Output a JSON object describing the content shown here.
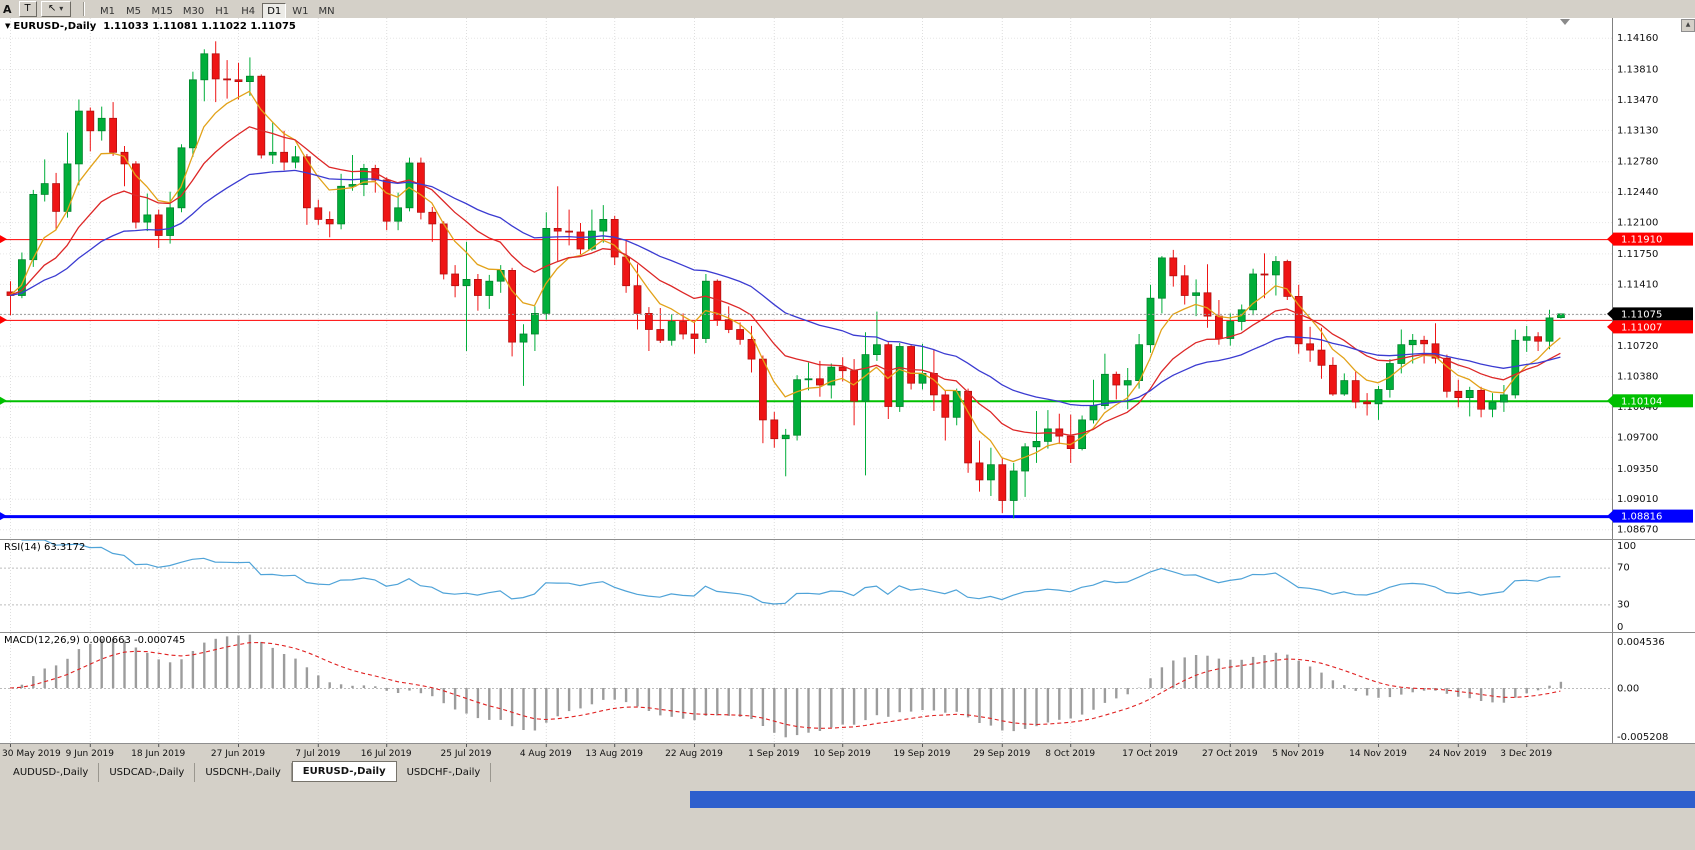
{
  "icons": {
    "collapse": "▼",
    "cursor": "↖",
    "dropdown": "▾",
    "scroll_up": "▲"
  },
  "toolbar": {
    "left_label": "A",
    "t_button_label": "T",
    "timeframes": {
      "items": [
        "M1",
        "M5",
        "M15",
        "M30",
        "H1",
        "H4",
        "D1",
        "W1",
        "MN"
      ],
      "active": "D1"
    }
  },
  "chart_header": {
    "symbol": "EURUSD-,Daily",
    "ohlc": "1.11033 1.11081 1.11022 1.11075"
  },
  "tabs": {
    "items": [
      "AUDUSD-,Daily",
      "USDCAD-,Daily",
      "USDCNH-,Daily",
      "EURUSD-,Daily",
      "USDCHF-,Daily"
    ],
    "active_index": 3
  },
  "chart_data": {
    "type": "candlestick",
    "symbol": "EURUSD",
    "timeframe": "Daily",
    "colors": {
      "bull": "#00ae3a",
      "bull_border": "#00832b",
      "bear": "#ee1515",
      "bear_border": "#b30f0f"
    },
    "price_axis": {
      "ticks": [
        "1.14160",
        "1.13810",
        "1.13470",
        "1.13130",
        "1.12780",
        "1.12440",
        "1.12100",
        "1.11750",
        "1.11410",
        "1.10720",
        "1.10380",
        "1.10040",
        "1.09700",
        "1.09350",
        "1.09010",
        "1.08670"
      ],
      "hidden_gridlines": [
        1.1107
      ],
      "current_price": 1.11075,
      "current_label": "1.11075",
      "current_box_color": "#000000"
    },
    "hlines": [
      {
        "price": 1.1191,
        "label": "1.11910",
        "color": "#ff0000",
        "width": 1
      },
      {
        "price": 1.11007,
        "label": "1.11007",
        "color": "#ff0000",
        "width": 1,
        "box_below_current": true
      },
      {
        "price": 1.10104,
        "label": "1.10104",
        "color": "#00c000",
        "width": 2
      },
      {
        "price": 1.08816,
        "label": "1.08816",
        "color": "#0000ff",
        "width": 3
      }
    ],
    "moving_averages": [
      {
        "name": "ma-fast-line",
        "period": 6,
        "color": "#e2a219"
      },
      {
        "name": "ma-mid-line",
        "period": 14,
        "color": "#dd2727"
      },
      {
        "name": "ma-slow-line",
        "period": 30,
        "color": "#3b3bd1"
      }
    ],
    "rsi": {
      "title": "RSI(14) 63.3172",
      "period": 14,
      "color": "#4fa3d8",
      "scale_labels": [
        "100",
        "70",
        "30",
        "0"
      ],
      "level_lines": [
        70,
        30
      ]
    },
    "macd": {
      "title": "MACD(12,26,9) 0.000663 -0.000745",
      "fast": 12,
      "slow": 26,
      "signal_period": 9,
      "scale_labels": [
        "0.004536",
        "0.00",
        "-0.005208"
      ],
      "hist_color": "#9c9c9c",
      "signal_color": "#e02222"
    },
    "x_labels": [
      {
        "index": 0,
        "label": "30 May 2019"
      },
      {
        "index": 7,
        "label": "9 Jun 2019"
      },
      {
        "index": 13,
        "label": "18 Jun 2019"
      },
      {
        "index": 20,
        "label": "27 Jun 2019"
      },
      {
        "index": 27,
        "label": "7 Jul 2019"
      },
      {
        "index": 33,
        "label": "16 Jul 2019"
      },
      {
        "index": 40,
        "label": "25 Jul 2019"
      },
      {
        "index": 47,
        "label": "4 Aug 2019"
      },
      {
        "index": 53,
        "label": "13 Aug 2019"
      },
      {
        "index": 60,
        "label": "22 Aug 2019"
      },
      {
        "index": 67,
        "label": "1 Sep 2019"
      },
      {
        "index": 73,
        "label": "10 Sep 2019"
      },
      {
        "index": 80,
        "label": "19 Sep 2019"
      },
      {
        "index": 87,
        "label": "29 Sep 2019"
      },
      {
        "index": 93,
        "label": "8 Oct 2019"
      },
      {
        "index": 100,
        "label": "17 Oct 2019"
      },
      {
        "index": 107,
        "label": "27 Oct 2019"
      },
      {
        "index": 113,
        "label": "5 Nov 2019"
      },
      {
        "index": 120,
        "label": "14 Nov 2019"
      },
      {
        "index": 127,
        "label": "24 Nov 2019"
      },
      {
        "index": 133,
        "label": "3 Dec 2019"
      }
    ],
    "candles": [
      [
        1.1132,
        1.1144,
        1.1106,
        1.1128
      ],
      [
        1.1128,
        1.1176,
        1.1125,
        1.1168
      ],
      [
        1.1168,
        1.1246,
        1.116,
        1.1241
      ],
      [
        1.1241,
        1.128,
        1.1233,
        1.1253
      ],
      [
        1.1253,
        1.1265,
        1.1201,
        1.1222
      ],
      [
        1.1222,
        1.131,
        1.1215,
        1.1275
      ],
      [
        1.1275,
        1.1347,
        1.1251,
        1.1334
      ],
      [
        1.1334,
        1.1338,
        1.1289,
        1.1312
      ],
      [
        1.1312,
        1.1339,
        1.1301,
        1.1326
      ],
      [
        1.1326,
        1.1344,
        1.1284,
        1.1288
      ],
      [
        1.1288,
        1.1295,
        1.125,
        1.1275
      ],
      [
        1.1275,
        1.1278,
        1.1203,
        1.121
      ],
      [
        1.121,
        1.1242,
        1.12,
        1.1218
      ],
      [
        1.1218,
        1.1224,
        1.1181,
        1.1195
      ],
      [
        1.1195,
        1.1244,
        1.1186,
        1.1226
      ],
      [
        1.1226,
        1.1297,
        1.1221,
        1.1293
      ],
      [
        1.1293,
        1.1378,
        1.1283,
        1.1369
      ],
      [
        1.1369,
        1.1403,
        1.1345,
        1.1398
      ],
      [
        1.1398,
        1.1412,
        1.1344,
        1.137
      ],
      [
        1.137,
        1.1391,
        1.1348,
        1.1369
      ],
      [
        1.1369,
        1.1388,
        1.1347,
        1.1367
      ],
      [
        1.1367,
        1.1394,
        1.1351,
        1.1373
      ],
      [
        1.1373,
        1.1375,
        1.1281,
        1.1285
      ],
      [
        1.1285,
        1.1322,
        1.1275,
        1.1288
      ],
      [
        1.1288,
        1.1312,
        1.1268,
        1.1277
      ],
      [
        1.1277,
        1.1295,
        1.127,
        1.1283
      ],
      [
        1.1283,
        1.1286,
        1.1207,
        1.1226
      ],
      [
        1.1226,
        1.1235,
        1.1207,
        1.1213
      ],
      [
        1.1213,
        1.1222,
        1.1193,
        1.1208
      ],
      [
        1.1208,
        1.1264,
        1.1202,
        1.125
      ],
      [
        1.125,
        1.1285,
        1.1245,
        1.1252
      ],
      [
        1.1252,
        1.1275,
        1.1239,
        1.127
      ],
      [
        1.127,
        1.1274,
        1.1243,
        1.1257
      ],
      [
        1.1257,
        1.126,
        1.1201,
        1.1211
      ],
      [
        1.1211,
        1.1243,
        1.1201,
        1.1226
      ],
      [
        1.1226,
        1.1282,
        1.1222,
        1.1276
      ],
      [
        1.1276,
        1.1282,
        1.1213,
        1.1221
      ],
      [
        1.1221,
        1.1227,
        1.1188,
        1.1208
      ],
      [
        1.1208,
        1.1211,
        1.1146,
        1.1152
      ],
      [
        1.1152,
        1.1162,
        1.1126,
        1.1139
      ],
      [
        1.1139,
        1.1188,
        1.1066,
        1.1146
      ],
      [
        1.1146,
        1.1152,
        1.1111,
        1.1128
      ],
      [
        1.1128,
        1.1151,
        1.1113,
        1.1144
      ],
      [
        1.1144,
        1.1162,
        1.1131,
        1.1156
      ],
      [
        1.1156,
        1.1159,
        1.106,
        1.1076
      ],
      [
        1.1076,
        1.1096,
        1.1027,
        1.1085
      ],
      [
        1.1085,
        1.1116,
        1.1066,
        1.1108
      ],
      [
        1.1108,
        1.1221,
        1.1101,
        1.1203
      ],
      [
        1.1203,
        1.125,
        1.1166,
        1.12
      ],
      [
        1.12,
        1.1224,
        1.1184,
        1.1199
      ],
      [
        1.1199,
        1.1209,
        1.1174,
        1.118
      ],
      [
        1.118,
        1.1224,
        1.1178,
        1.12
      ],
      [
        1.12,
        1.1229,
        1.1187,
        1.1213
      ],
      [
        1.1213,
        1.1217,
        1.1162,
        1.1171
      ],
      [
        1.1171,
        1.119,
        1.1131,
        1.1139
      ],
      [
        1.1139,
        1.1163,
        1.109,
        1.1108
      ],
      [
        1.1108,
        1.1115,
        1.1066,
        1.109
      ],
      [
        1.109,
        1.1114,
        1.1075,
        1.1078
      ],
      [
        1.1078,
        1.1107,
        1.1072,
        1.1099
      ],
      [
        1.1099,
        1.1108,
        1.1079,
        1.1085
      ],
      [
        1.1085,
        1.1098,
        1.1063,
        1.108
      ],
      [
        1.108,
        1.1152,
        1.1075,
        1.1144
      ],
      [
        1.1144,
        1.1146,
        1.1094,
        1.1101
      ],
      [
        1.1101,
        1.1116,
        1.1086,
        1.109
      ],
      [
        1.109,
        1.1098,
        1.1073,
        1.1079
      ],
      [
        1.1079,
        1.1094,
        1.1042,
        1.1057
      ],
      [
        1.1057,
        1.1061,
        1.0963,
        1.0989
      ],
      [
        1.0989,
        1.0998,
        1.0958,
        1.0968
      ],
      [
        1.0968,
        1.0979,
        1.0926,
        1.0972
      ],
      [
        1.0972,
        1.1039,
        1.0966,
        1.1034
      ],
      [
        1.1034,
        1.1053,
        1.1022,
        1.1035
      ],
      [
        1.1035,
        1.1055,
        1.1015,
        1.1028
      ],
      [
        1.1028,
        1.1052,
        1.1013,
        1.1048
      ],
      [
        1.1048,
        1.1059,
        1.1032,
        1.1044
      ],
      [
        1.1044,
        1.1057,
        1.0983,
        1.101
      ],
      [
        1.101,
        1.1087,
        1.0927,
        1.1062
      ],
      [
        1.1062,
        1.111,
        1.1055,
        1.1073
      ],
      [
        1.1073,
        1.1076,
        1.099,
        1.1004
      ],
      [
        1.1004,
        1.1075,
        1.0998,
        1.1071
      ],
      [
        1.1071,
        1.1073,
        1.1023,
        1.103
      ],
      [
        1.103,
        1.1074,
        1.1023,
        1.1041
      ],
      [
        1.1041,
        1.1068,
        1.0999,
        1.1017
      ],
      [
        1.1017,
        1.1022,
        1.0966,
        1.0992
      ],
      [
        1.0992,
        1.1024,
        1.0983,
        1.1021
      ],
      [
        1.1021,
        1.1024,
        1.093,
        1.0941
      ],
      [
        1.0941,
        1.0966,
        1.0909,
        1.0922
      ],
      [
        1.0922,
        1.0958,
        1.0904,
        1.0939
      ],
      [
        1.0939,
        1.0947,
        1.0885,
        1.0899
      ],
      [
        1.0899,
        1.0941,
        1.0879,
        1.0932
      ],
      [
        1.0932,
        1.0963,
        1.0903,
        1.0959
      ],
      [
        1.0959,
        1.0999,
        1.0941,
        1.0965
      ],
      [
        1.0965,
        1.1,
        1.0957,
        1.0979
      ],
      [
        1.0979,
        1.0996,
        1.0962,
        1.0971
      ],
      [
        1.0971,
        1.0995,
        1.0941,
        1.0957
      ],
      [
        1.0957,
        1.0994,
        1.0955,
        1.0989
      ],
      [
        1.0989,
        1.1034,
        1.0985,
        1.1005
      ],
      [
        1.1005,
        1.1063,
        1.1001,
        1.104
      ],
      [
        1.104,
        1.1043,
        1.1012,
        1.1028
      ],
      [
        1.1028,
        1.1047,
        1.1001,
        1.1033
      ],
      [
        1.1033,
        1.1085,
        1.1024,
        1.1073
      ],
      [
        1.1073,
        1.114,
        1.1064,
        1.1125
      ],
      [
        1.1125,
        1.1172,
        1.1108,
        1.117
      ],
      [
        1.117,
        1.1179,
        1.1138,
        1.115
      ],
      [
        1.115,
        1.1162,
        1.1118,
        1.1128
      ],
      [
        1.1128,
        1.1146,
        1.1105,
        1.1131
      ],
      [
        1.1131,
        1.1163,
        1.1092,
        1.1105
      ],
      [
        1.1105,
        1.1123,
        1.1073,
        1.108
      ],
      [
        1.108,
        1.1108,
        1.1072,
        1.1099
      ],
      [
        1.1099,
        1.1118,
        1.1089,
        1.1112
      ],
      [
        1.1112,
        1.1158,
        1.1106,
        1.1152
      ],
      [
        1.1152,
        1.1175,
        1.1125,
        1.1151
      ],
      [
        1.1151,
        1.1172,
        1.1128,
        1.1166
      ],
      [
        1.1166,
        1.1168,
        1.1123,
        1.1127
      ],
      [
        1.1127,
        1.114,
        1.1063,
        1.1074
      ],
      [
        1.1074,
        1.1093,
        1.1054,
        1.1067
      ],
      [
        1.1067,
        1.1092,
        1.1035,
        1.105
      ],
      [
        1.105,
        1.1059,
        1.1016,
        1.1018
      ],
      [
        1.1018,
        1.1041,
        1.1016,
        1.1033
      ],
      [
        1.1033,
        1.1043,
        1.1002,
        1.1009
      ],
      [
        1.1009,
        1.1019,
        1.0994,
        1.1007
      ],
      [
        1.1007,
        1.1027,
        1.0989,
        1.1023
      ],
      [
        1.1023,
        1.1057,
        1.1014,
        1.1052
      ],
      [
        1.1052,
        1.109,
        1.1041,
        1.1073
      ],
      [
        1.1073,
        1.1085,
        1.1052,
        1.1078
      ],
      [
        1.1078,
        1.1083,
        1.1052,
        1.1074
      ],
      [
        1.1074,
        1.1097,
        1.1052,
        1.1058
      ],
      [
        1.1058,
        1.1062,
        1.1014,
        1.1021
      ],
      [
        1.1021,
        1.1034,
        1.1003,
        1.1014
      ],
      [
        1.1014,
        1.1026,
        1.0993,
        1.1022
      ],
      [
        1.1022,
        1.1026,
        1.0992,
        1.1001
      ],
      [
        1.1001,
        1.1019,
        1.0992,
        1.1009
      ],
      [
        1.1009,
        1.1028,
        1.0998,
        1.1017
      ],
      [
        1.1017,
        1.109,
        1.1013,
        1.1078
      ],
      [
        1.1078,
        1.1094,
        1.1065,
        1.1082
      ],
      [
        1.1082,
        1.1087,
        1.1066,
        1.1077
      ],
      [
        1.1077,
        1.1112,
        1.1068,
        1.1103
      ],
      [
        1.11033,
        1.11081,
        1.11022,
        1.11075
      ]
    ]
  }
}
